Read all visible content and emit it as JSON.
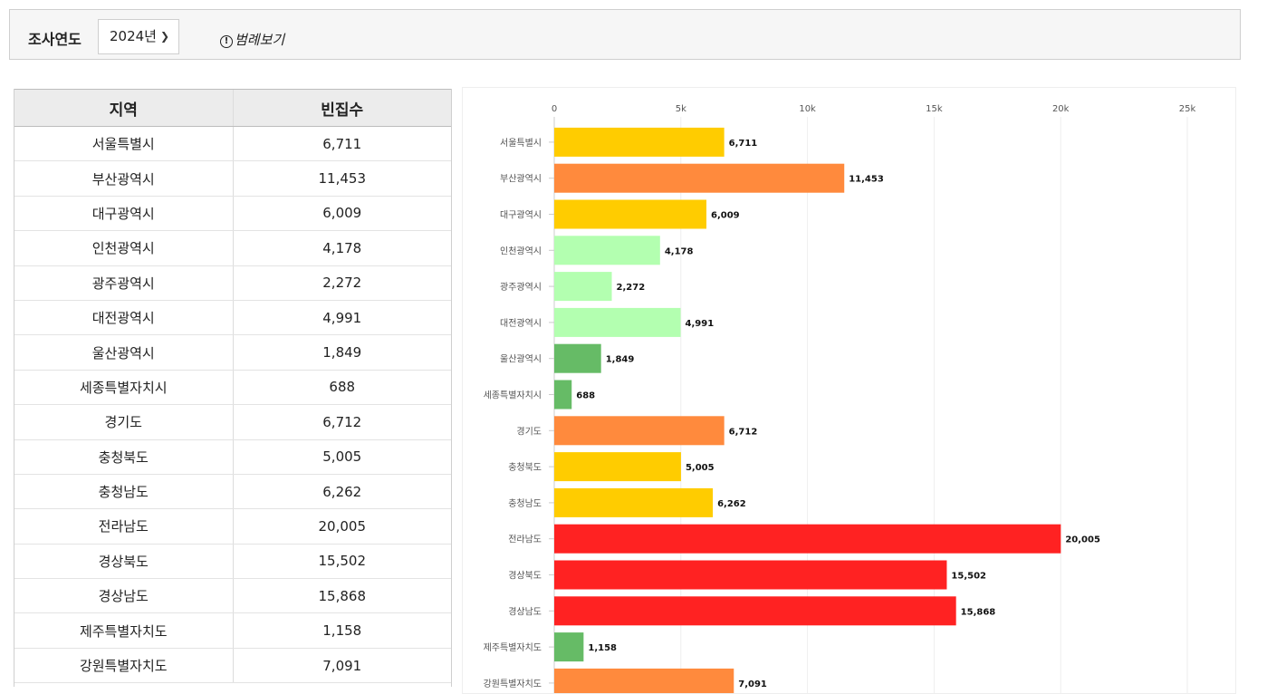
{
  "filter": {
    "year_label": "조사연도",
    "year_value": "2024년",
    "legend_link": "범례보기"
  },
  "table": {
    "headers": [
      "지역",
      "빈집수"
    ],
    "rows": [
      [
        "서울특별시",
        "6,711"
      ],
      [
        "부산광역시",
        "11,453"
      ],
      [
        "대구광역시",
        "6,009"
      ],
      [
        "인천광역시",
        "4,178"
      ],
      [
        "광주광역시",
        "2,272"
      ],
      [
        "대전광역시",
        "4,991"
      ],
      [
        "울산광역시",
        "1,849"
      ],
      [
        "세종특별자치시",
        "688"
      ],
      [
        "경기도",
        "6,712"
      ],
      [
        "충청북도",
        "5,005"
      ],
      [
        "충청남도",
        "6,262"
      ],
      [
        "전라남도",
        "20,005"
      ],
      [
        "경상북도",
        "15,502"
      ],
      [
        "경상남도",
        "15,868"
      ],
      [
        "제주특별자치도",
        "1,158"
      ],
      [
        "강원특별자치도",
        "7,091"
      ]
    ]
  },
  "chart_data": {
    "type": "bar",
    "orientation": "horizontal",
    "categories": [
      "서울특별시",
      "부산광역시",
      "대구광역시",
      "인천광역시",
      "광주광역시",
      "대전광역시",
      "울산광역시",
      "세종특별자치시",
      "경기도",
      "충청북도",
      "충청남도",
      "전라남도",
      "경상북도",
      "경상남도",
      "제주특별자치도",
      "강원특별자치도"
    ],
    "values": [
      6711,
      11453,
      6009,
      4178,
      2272,
      4991,
      1849,
      688,
      6712,
      5005,
      6262,
      20005,
      15502,
      15868,
      1158,
      7091
    ],
    "value_labels": [
      "6,711",
      "11,453",
      "6,009",
      "4,178",
      "2,272",
      "4,991",
      "1,849",
      "688",
      "6,712",
      "5,005",
      "6,262",
      "20,005",
      "15,502",
      "15,868",
      "1,158",
      "7,091"
    ],
    "colors": [
      "#FFCC00",
      "#FF8A3D",
      "#FFCC00",
      "#B3FFB0",
      "#B3FFB0",
      "#B3FFB0",
      "#66BB66",
      "#66BB66",
      "#FF8A3D",
      "#FFCC00",
      "#FFCC00",
      "#FF2222",
      "#FF2222",
      "#FF2222",
      "#66BB66",
      "#FF8A3D"
    ],
    "xlim": [
      0,
      25000
    ],
    "ticks": [
      0,
      5000,
      10000,
      15000,
      20000,
      25000
    ],
    "tick_labels": [
      "0",
      "5k",
      "10k",
      "15k",
      "20k",
      "25k"
    ],
    "grid": true,
    "title": "",
    "xlabel": "",
    "ylabel": ""
  }
}
